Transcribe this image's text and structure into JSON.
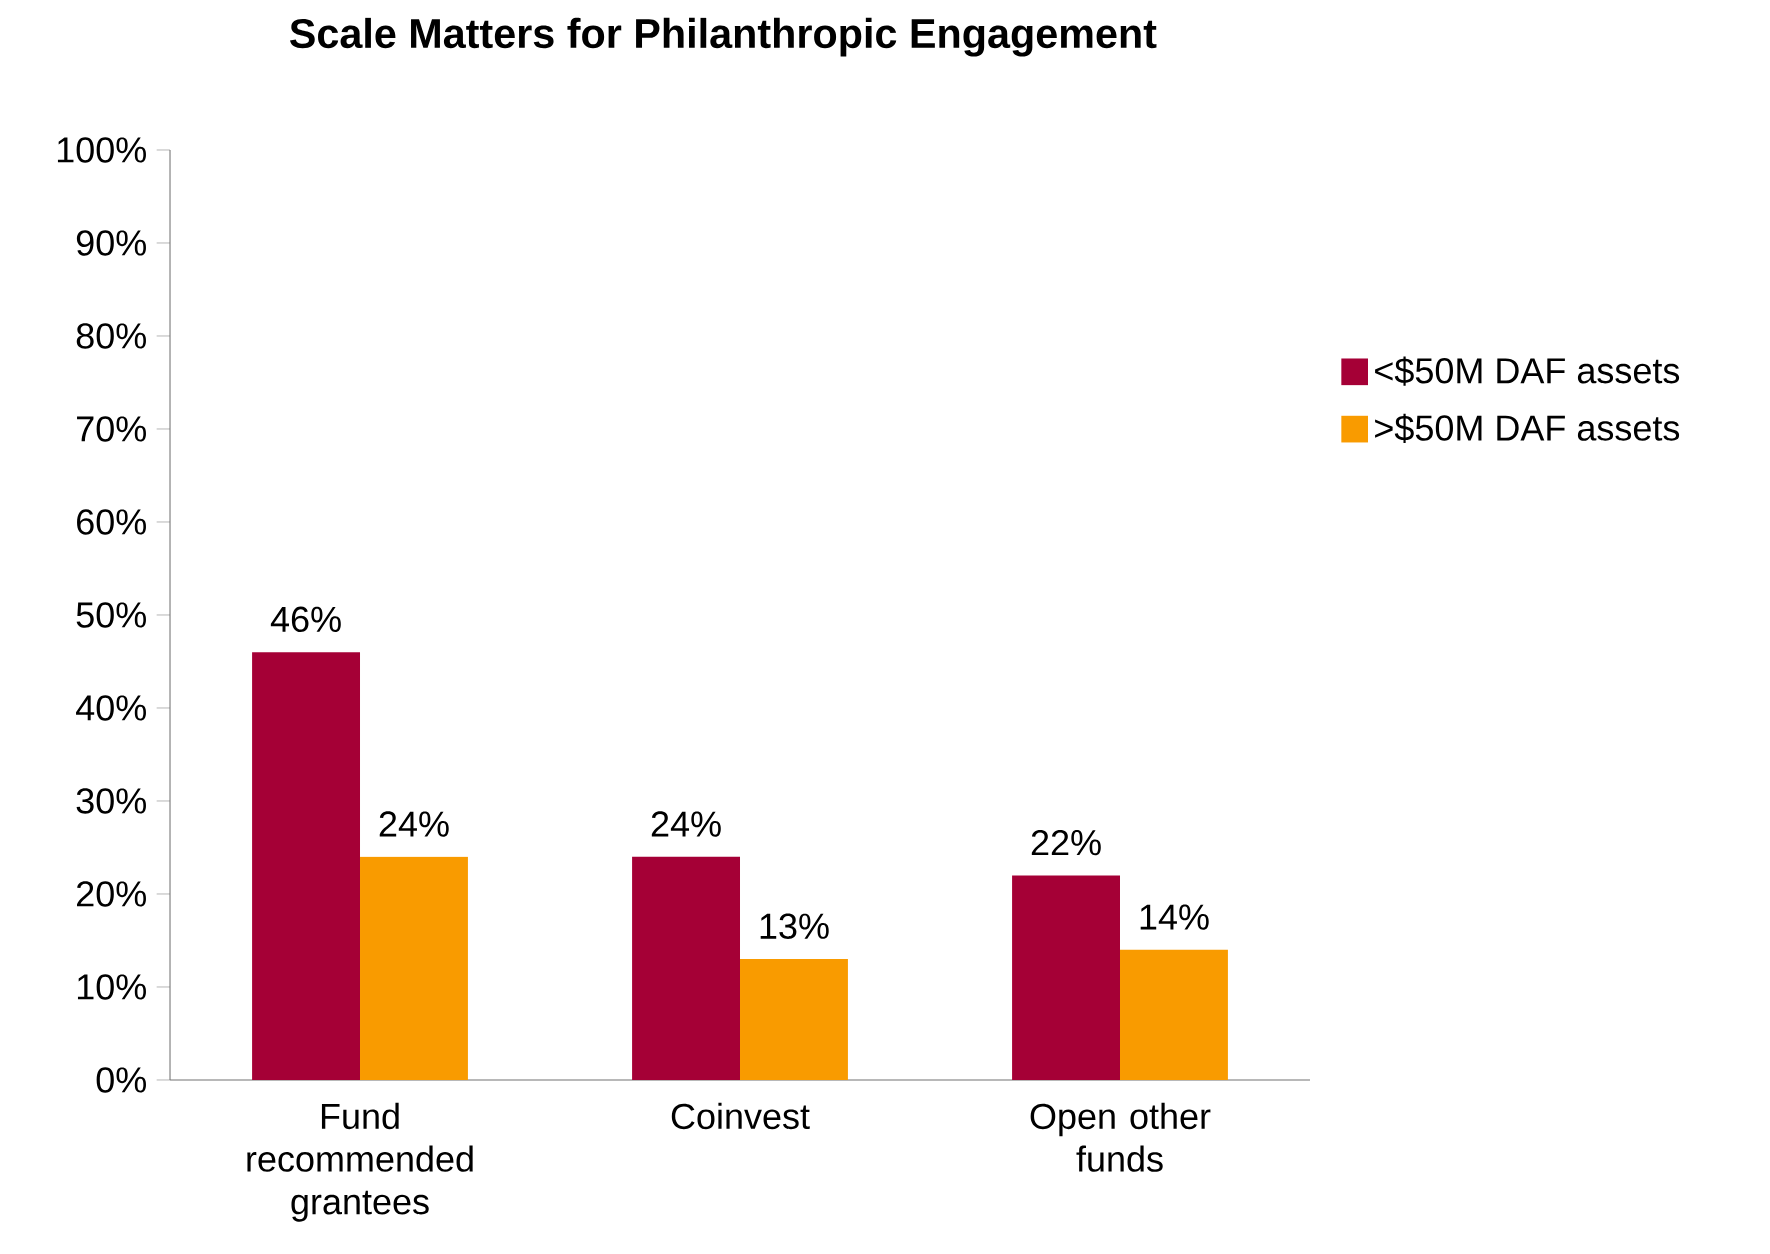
{
  "chart_data": {
    "type": "bar",
    "title": "Scale Matters for Philanthropic Engagement",
    "categories": [
      "Fund recommended grantees",
      "Coinvest",
      "Open other funds"
    ],
    "series": [
      {
        "name": "<$50M DAF assets",
        "color": "#a50036",
        "values": [
          46,
          24,
          22
        ],
        "value_labels": [
          "46%",
          "24%",
          "22%"
        ]
      },
      {
        "name": ">$50M DAF assets",
        "color": "#f99b00",
        "values": [
          24,
          13,
          14
        ],
        "value_labels": [
          "24%",
          "13%",
          "14%"
        ]
      }
    ],
    "ylim": [
      0,
      100
    ],
    "yticks": [
      {
        "value": 0,
        "label": "0%"
      },
      {
        "value": 10,
        "label": "10%"
      },
      {
        "value": 20,
        "label": "20%"
      },
      {
        "value": 30,
        "label": "30%"
      },
      {
        "value": 40,
        "label": "40%"
      },
      {
        "value": 50,
        "label": "50%"
      },
      {
        "value": 60,
        "label": "60%"
      },
      {
        "value": 70,
        "label": "70%"
      },
      {
        "value": 80,
        "label": "80%"
      },
      {
        "value": 90,
        "label": "90%"
      },
      {
        "value": 100,
        "label": "100%"
      }
    ],
    "grid": false,
    "legend": "right"
  }
}
